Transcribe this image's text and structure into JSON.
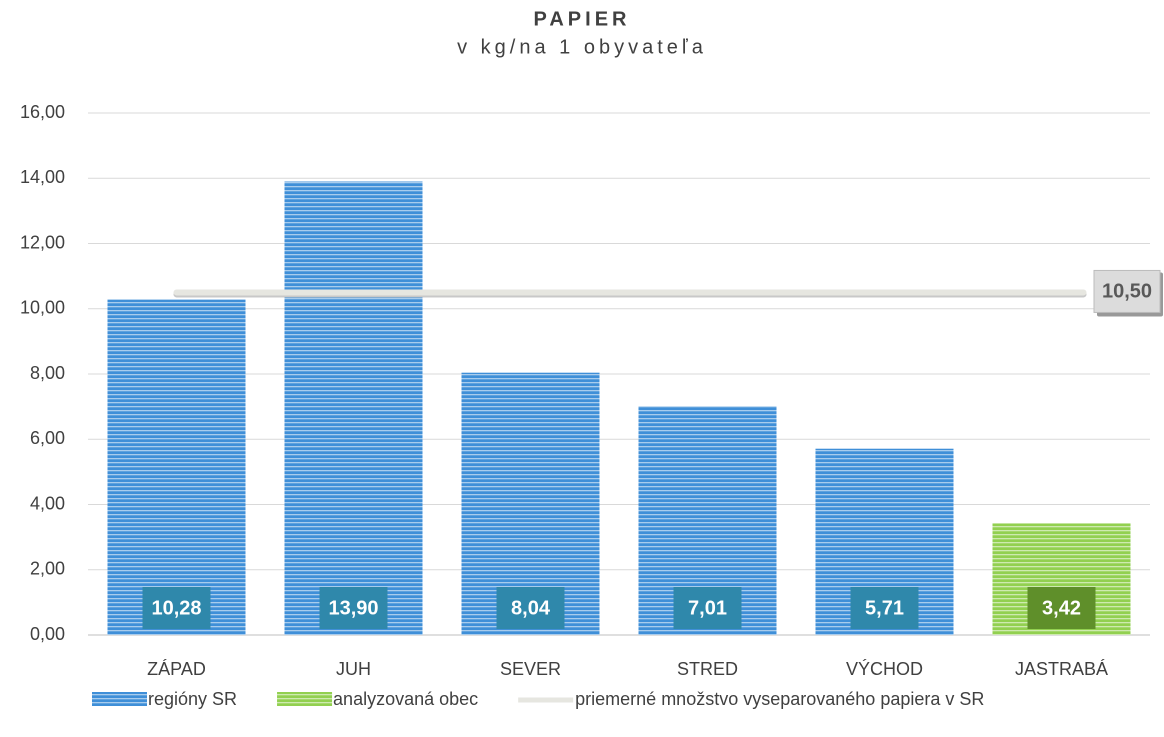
{
  "chart_data": {
    "type": "bar",
    "title": "PAPIER",
    "subtitle": "v kg/na 1 obyvateľa",
    "categories": [
      "ZÁPAD",
      "JUH",
      "SEVER",
      "STRED",
      "VÝCHOD",
      "JASTRABÁ"
    ],
    "series": [
      {
        "name": "regióny SR",
        "color": "#3f8fd8",
        "label_color": "#2f88ab",
        "values": [
          10.28,
          13.9,
          8.04,
          7.01,
          5.71,
          null
        ],
        "value_labels": [
          "10,28",
          "13,90",
          "8,04",
          "7,01",
          "5,71",
          null
        ]
      },
      {
        "name": "analyzovaná obec",
        "color": "#92d050",
        "label_color": "#5f8f2a",
        "values": [
          null,
          null,
          null,
          null,
          null,
          3.42
        ],
        "value_labels": [
          null,
          null,
          null,
          null,
          null,
          "3,42"
        ]
      }
    ],
    "reference_line": {
      "name": "priemerné množstvo vyseparovaného papiera v SR",
      "value": 10.5,
      "label": "10,50",
      "color": "#e6e6e0"
    },
    "ylim": [
      0,
      16
    ],
    "yticks": [
      {
        "value": 0,
        "label": "0,00"
      },
      {
        "value": 2,
        "label": "2,00"
      },
      {
        "value": 4,
        "label": "4,00"
      },
      {
        "value": 6,
        "label": "6,00"
      },
      {
        "value": 8,
        "label": "8,00"
      },
      {
        "value": 10,
        "label": "10,00"
      },
      {
        "value": 12,
        "label": "12,00"
      },
      {
        "value": 14,
        "label": "14,00"
      },
      {
        "value": 16,
        "label": "16,00"
      }
    ],
    "grid": true
  }
}
